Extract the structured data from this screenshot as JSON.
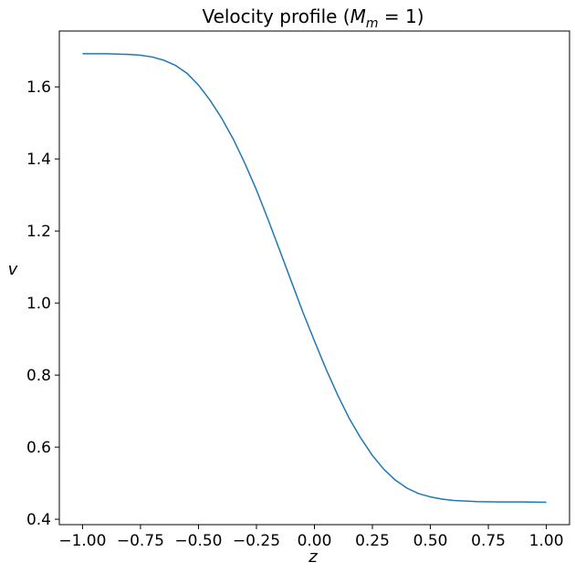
{
  "chart_data": {
    "type": "line",
    "title": "Velocity profile",
    "title_math_symbol": "M",
    "title_math_subscript": "m",
    "title_math_rhs": "1",
    "xlabel": "z",
    "ylabel": "v",
    "xlim": [
      -1.1,
      1.1
    ],
    "ylim": [
      0.385,
      1.755
    ],
    "x_ticks": [
      -1.0,
      -0.75,
      -0.5,
      -0.25,
      0.0,
      0.25,
      0.5,
      0.75,
      1.0
    ],
    "x_tick_labels": [
      "−1.00",
      "−0.75",
      "−0.50",
      "−0.25",
      "0.00",
      "0.25",
      "0.50",
      "0.75",
      "1.00"
    ],
    "y_ticks": [
      0.4,
      0.6,
      0.8,
      1.0,
      1.2,
      1.4,
      1.6
    ],
    "y_tick_labels": [
      "0.4",
      "0.6",
      "0.8",
      "1.0",
      "1.2",
      "1.4",
      "1.6"
    ],
    "grid": false,
    "series": [
      {
        "color": "#1f77b4",
        "x": [
          -1.0,
          -0.9,
          -0.8,
          -0.75,
          -0.7,
          -0.65,
          -0.6,
          -0.55,
          -0.5,
          -0.45,
          -0.4,
          -0.35,
          -0.3,
          -0.25,
          -0.2,
          -0.15,
          -0.1,
          -0.05,
          0.0,
          0.05,
          0.1,
          0.15,
          0.2,
          0.25,
          0.3,
          0.35,
          0.4,
          0.45,
          0.5,
          0.55,
          0.6,
          0.7,
          0.8,
          0.9,
          1.0
        ],
        "y": [
          1.692,
          1.692,
          1.69,
          1.688,
          1.683,
          1.674,
          1.66,
          1.638,
          1.605,
          1.563,
          1.513,
          1.455,
          1.388,
          1.314,
          1.232,
          1.147,
          1.061,
          0.975,
          0.895,
          0.817,
          0.745,
          0.68,
          0.625,
          0.577,
          0.538,
          0.508,
          0.486,
          0.471,
          0.462,
          0.456,
          0.452,
          0.449,
          0.448,
          0.448,
          0.447
        ]
      }
    ]
  }
}
